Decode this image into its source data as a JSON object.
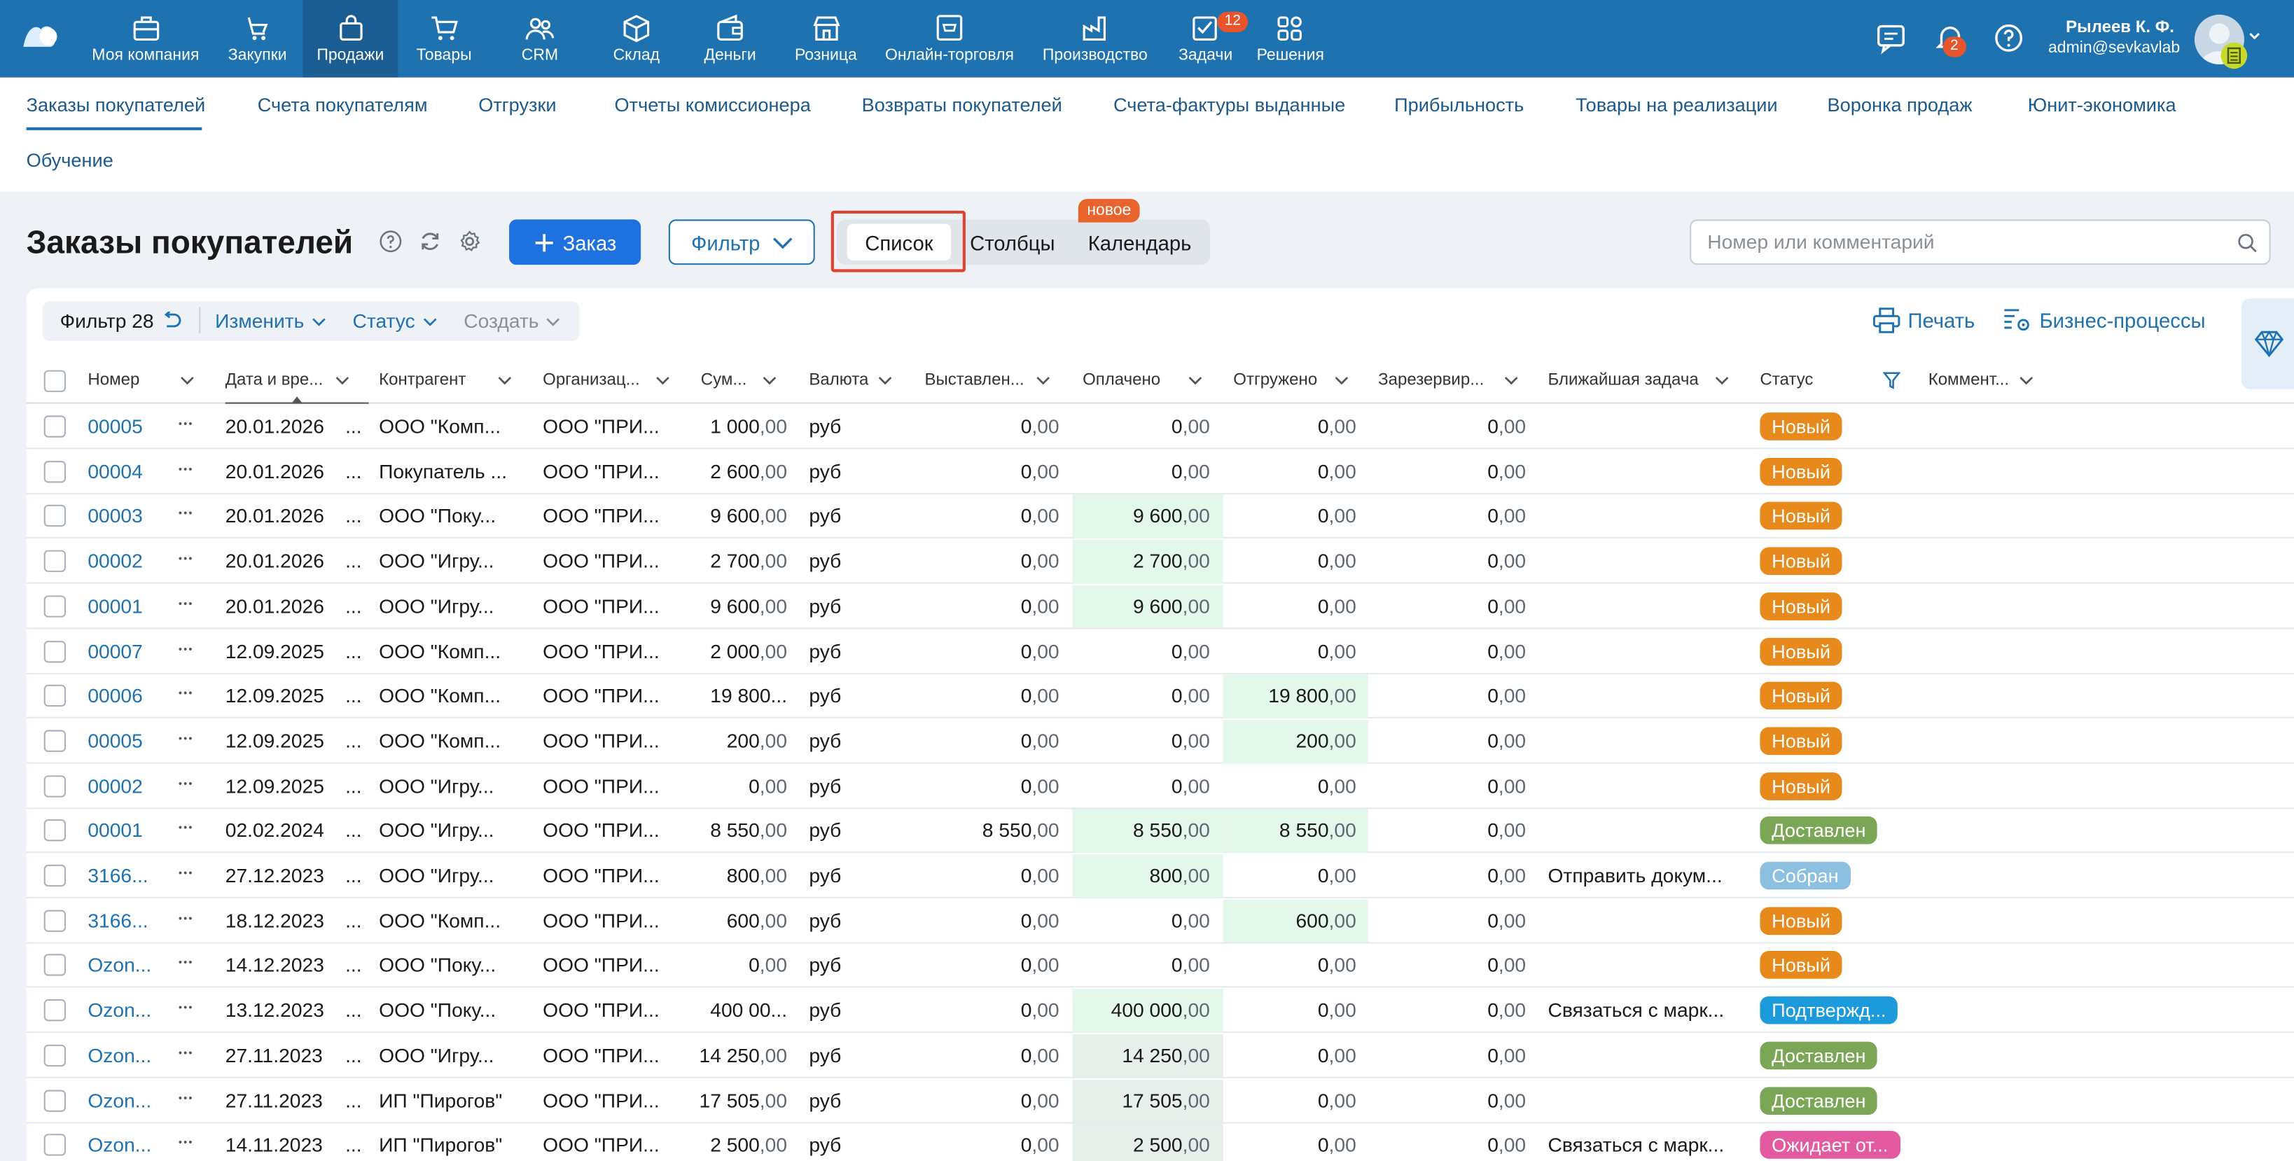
{
  "topbar": {
    "nav": [
      {
        "label": "Моя компания",
        "icon": "briefcase-icon"
      },
      {
        "label": "Закупки",
        "icon": "purchases-icon"
      },
      {
        "label": "Продажи",
        "icon": "shopping-bag-icon"
      },
      {
        "label": "Товары",
        "icon": "cart-icon"
      },
      {
        "label": "CRM",
        "icon": "people-icon"
      },
      {
        "label": "Склад",
        "icon": "box-icon"
      },
      {
        "label": "Деньги",
        "icon": "wallet-icon"
      },
      {
        "label": "Розница",
        "icon": "store-icon"
      },
      {
        "label": "Онлайн-торговля",
        "icon": "online-shop-icon"
      },
      {
        "label": "Производство",
        "icon": "factory-icon"
      },
      {
        "label": "Задачи",
        "icon": "tasks-icon",
        "badge": "12"
      },
      {
        "label": "Решения",
        "icon": "apps-icon"
      }
    ],
    "notifications_badge": "2",
    "user_name": "Рылеев К. Ф.",
    "user_email": "admin@sevkavlab"
  },
  "subnav": [
    "Заказы покупателей",
    "Счета покупателям",
    "Отгрузки",
    "Отчеты комиссионера",
    "Возвраты покупателей",
    "Счета-фактуры выданные",
    "Прибыльность",
    "Товары на реализации",
    "Воронка продаж",
    "Юнит-экономика",
    "Обучение"
  ],
  "page": {
    "title": "Заказы покупателей",
    "order_button": "Заказ",
    "filter_button": "Фильтр",
    "views": [
      "Список",
      "Столбцы",
      "Календарь"
    ],
    "new_badge": "новое",
    "search_placeholder": "Номер или комментарий"
  },
  "toolbar": {
    "filter": "Фильтр 28",
    "edit": "Изменить",
    "status": "Статус",
    "create": "Создать",
    "print": "Печать",
    "business": "Бизнес-процессы"
  },
  "columns": [
    "Номер",
    "Дата и вре...",
    "Контрагент",
    "Организац...",
    "Сум...",
    "Валюта",
    "Выставлен...",
    "Оплачено",
    "Отгружено",
    "Зарезервир...",
    "Ближайшая задача",
    "Статус",
    "Коммент..."
  ],
  "status_colors": {
    "Новый": "#e8891c",
    "Доставлен": "#7aa656",
    "Собран": "#8cc0e0",
    "Подтвержд...": "#1c9bdc",
    "Ожидает от...": "#e45aa0"
  },
  "rows": [
    {
      "num": "00005",
      "date": "20.01.2026",
      "contractor": "ООО \"Комп...",
      "org": "ООО \"ПРИ...",
      "sum_i": "1 000",
      "sum_f": ",00",
      "cur": "руб",
      "inv_i": "0",
      "inv_f": ",00",
      "paid_i": "0",
      "paid_f": ",00",
      "paid_hl": "",
      "ship_i": "0",
      "ship_f": ",00",
      "ship_hl": "",
      "res_i": "0",
      "res_f": ",00",
      "task": "",
      "status": "Новый"
    },
    {
      "num": "00004",
      "date": "20.01.2026",
      "contractor": "Покупатель ...",
      "org": "ООО \"ПРИ...",
      "sum_i": "2 600",
      "sum_f": ",00",
      "cur": "руб",
      "inv_i": "0",
      "inv_f": ",00",
      "paid_i": "0",
      "paid_f": ",00",
      "paid_hl": "",
      "ship_i": "0",
      "ship_f": ",00",
      "ship_hl": "",
      "res_i": "0",
      "res_f": ",00",
      "task": "",
      "status": "Новый"
    },
    {
      "num": "00003",
      "date": "20.01.2026",
      "contractor": "ООО \"Поку...",
      "org": "ООО \"ПРИ...",
      "sum_i": "9 600",
      "sum_f": ",00",
      "cur": "руб",
      "inv_i": "0",
      "inv_f": ",00",
      "paid_i": "9 600",
      "paid_f": ",00",
      "paid_hl": "green",
      "ship_i": "0",
      "ship_f": ",00",
      "ship_hl": "",
      "res_i": "0",
      "res_f": ",00",
      "task": "",
      "status": "Новый"
    },
    {
      "num": "00002",
      "date": "20.01.2026",
      "contractor": "ООО \"Игру...",
      "org": "ООО \"ПРИ...",
      "sum_i": "2 700",
      "sum_f": ",00",
      "cur": "руб",
      "inv_i": "0",
      "inv_f": ",00",
      "paid_i": "2 700",
      "paid_f": ",00",
      "paid_hl": "green",
      "ship_i": "0",
      "ship_f": ",00",
      "ship_hl": "",
      "res_i": "0",
      "res_f": ",00",
      "task": "",
      "status": "Новый"
    },
    {
      "num": "00001",
      "date": "20.01.2026",
      "contractor": "ООО \"Игру...",
      "org": "ООО \"ПРИ...",
      "sum_i": "9 600",
      "sum_f": ",00",
      "cur": "руб",
      "inv_i": "0",
      "inv_f": ",00",
      "paid_i": "9 600",
      "paid_f": ",00",
      "paid_hl": "green",
      "ship_i": "0",
      "ship_f": ",00",
      "ship_hl": "",
      "res_i": "0",
      "res_f": ",00",
      "task": "",
      "status": "Новый"
    },
    {
      "num": "00007",
      "date": "12.09.2025",
      "contractor": "ООО \"Комп...",
      "org": "ООО \"ПРИ...",
      "sum_i": "2 000",
      "sum_f": ",00",
      "cur": "руб",
      "inv_i": "0",
      "inv_f": ",00",
      "paid_i": "0",
      "paid_f": ",00",
      "paid_hl": "",
      "ship_i": "0",
      "ship_f": ",00",
      "ship_hl": "",
      "res_i": "0",
      "res_f": ",00",
      "task": "",
      "status": "Новый"
    },
    {
      "num": "00006",
      "date": "12.09.2025",
      "contractor": "ООО \"Комп...",
      "org": "ООО \"ПРИ...",
      "sum_i": "19 800...",
      "sum_f": "",
      "cur": "руб",
      "inv_i": "0",
      "inv_f": ",00",
      "paid_i": "0",
      "paid_f": ",00",
      "paid_hl": "",
      "ship_i": "19 800",
      "ship_f": ",00",
      "ship_hl": "green",
      "res_i": "0",
      "res_f": ",00",
      "task": "",
      "status": "Новый"
    },
    {
      "num": "00005",
      "date": "12.09.2025",
      "contractor": "ООО \"Комп...",
      "org": "ООО \"ПРИ...",
      "sum_i": "200",
      "sum_f": ",00",
      "cur": "руб",
      "inv_i": "0",
      "inv_f": ",00",
      "paid_i": "0",
      "paid_f": ",00",
      "paid_hl": "",
      "ship_i": "200",
      "ship_f": ",00",
      "ship_hl": "green",
      "res_i": "0",
      "res_f": ",00",
      "task": "",
      "status": "Новый"
    },
    {
      "num": "00002",
      "date": "12.09.2025",
      "contractor": "ООО \"Игру...",
      "org": "ООО \"ПРИ...",
      "sum_i": "0",
      "sum_f": ",00",
      "cur": "руб",
      "inv_i": "0",
      "inv_f": ",00",
      "paid_i": "0",
      "paid_f": ",00",
      "paid_hl": "",
      "ship_i": "0",
      "ship_f": ",00",
      "ship_hl": "",
      "res_i": "0",
      "res_f": ",00",
      "task": "",
      "status": "Новый"
    },
    {
      "num": "00001",
      "date": "02.02.2024",
      "contractor": "ООО \"Игру...",
      "org": "ООО \"ПРИ...",
      "sum_i": "8 550",
      "sum_f": ",00",
      "cur": "руб",
      "inv_i": "8 550",
      "inv_f": ",00",
      "paid_i": "8 550",
      "paid_f": ",00",
      "paid_hl": "green",
      "ship_i": "8 550",
      "ship_f": ",00",
      "ship_hl": "green",
      "res_i": "0",
      "res_f": ",00",
      "task": "",
      "status": "Доставлен"
    },
    {
      "num": "3166...",
      "date": "27.12.2023",
      "contractor": "ООО \"Игру...",
      "org": "ООО \"ПРИ...",
      "sum_i": "800",
      "sum_f": ",00",
      "cur": "руб",
      "inv_i": "0",
      "inv_f": ",00",
      "paid_i": "800",
      "paid_f": ",00",
      "paid_hl": "green",
      "ship_i": "0",
      "ship_f": ",00",
      "ship_hl": "",
      "res_i": "0",
      "res_f": ",00",
      "task": "Отправить докум...",
      "status": "Собран"
    },
    {
      "num": "3166...",
      "date": "18.12.2023",
      "contractor": "ООО \"Комп...",
      "org": "ООО \"ПРИ...",
      "sum_i": "600",
      "sum_f": ",00",
      "cur": "руб",
      "inv_i": "0",
      "inv_f": ",00",
      "paid_i": "0",
      "paid_f": ",00",
      "paid_hl": "",
      "ship_i": "600",
      "ship_f": ",00",
      "ship_hl": "green",
      "res_i": "0",
      "res_f": ",00",
      "task": "",
      "status": "Новый"
    },
    {
      "num": "Ozon...",
      "date": "14.12.2023",
      "contractor": "ООО \"Поку...",
      "org": "ООО \"ПРИ...",
      "sum_i": "0",
      "sum_f": ",00",
      "cur": "руб",
      "inv_i": "0",
      "inv_f": ",00",
      "paid_i": "0",
      "paid_f": ",00",
      "paid_hl": "",
      "ship_i": "0",
      "ship_f": ",00",
      "ship_hl": "",
      "res_i": "0",
      "res_f": ",00",
      "task": "",
      "status": "Новый"
    },
    {
      "num": "Ozon...",
      "date": "13.12.2023",
      "contractor": "ООО \"Поку...",
      "org": "ООО \"ПРИ...",
      "sum_i": "400 00...",
      "sum_f": "",
      "cur": "руб",
      "inv_i": "0",
      "inv_f": ",00",
      "paid_i": "400 000",
      "paid_f": ",00",
      "paid_hl": "green",
      "ship_i": "0",
      "ship_f": ",00",
      "ship_hl": "",
      "res_i": "0",
      "res_f": ",00",
      "task": "Связаться с марк...",
      "status": "Подтвержд..."
    },
    {
      "num": "Ozon...",
      "date": "27.11.2023",
      "contractor": "ООО \"Игру...",
      "org": "ООО \"ПРИ...",
      "sum_i": "14 250",
      "sum_f": ",00",
      "cur": "руб",
      "inv_i": "0",
      "inv_f": ",00",
      "paid_i": "14 250",
      "paid_f": ",00",
      "paid_hl": "grey",
      "ship_i": "0",
      "ship_f": ",00",
      "ship_hl": "",
      "res_i": "0",
      "res_f": ",00",
      "task": "",
      "status": "Доставлен"
    },
    {
      "num": "Ozon...",
      "date": "27.11.2023",
      "contractor": "ИП \"Пирогов\"",
      "org": "ООО \"ПРИ...",
      "sum_i": "17 505",
      "sum_f": ",00",
      "cur": "руб",
      "inv_i": "0",
      "inv_f": ",00",
      "paid_i": "17 505",
      "paid_f": ",00",
      "paid_hl": "grey",
      "ship_i": "0",
      "ship_f": ",00",
      "ship_hl": "",
      "res_i": "0",
      "res_f": ",00",
      "task": "",
      "status": "Доставлен"
    },
    {
      "num": "Ozon...",
      "date": "14.11.2023",
      "contractor": "ИП \"Пирогов\"",
      "org": "ООО \"ПРИ...",
      "sum_i": "2 500",
      "sum_f": ",00",
      "cur": "руб",
      "inv_i": "0",
      "inv_f": ",00",
      "paid_i": "2 500",
      "paid_f": ",00",
      "paid_hl": "grey",
      "ship_i": "0",
      "ship_f": ",00",
      "ship_hl": "",
      "res_i": "0",
      "res_f": ",00",
      "task": "Связаться с марк...",
      "status": "Ожидает от..."
    }
  ]
}
